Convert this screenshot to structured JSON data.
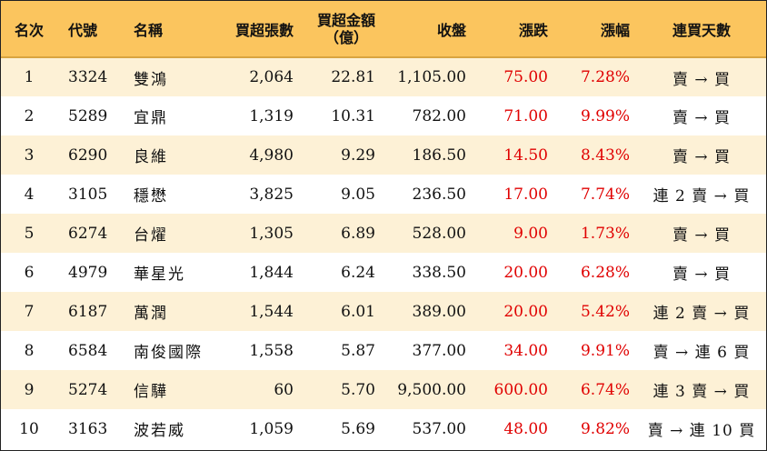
{
  "headers": {
    "rank": "名次",
    "code": "代號",
    "name": "名稱",
    "net_buy_lots": "買超張數",
    "net_buy_amount_line1": "買超金額",
    "net_buy_amount_line2": "（億）",
    "close": "收盤",
    "change": "漲跌",
    "change_pct": "漲幅",
    "consecutive_days": "連買天數"
  },
  "rows": [
    {
      "rank": "1",
      "code": "3324",
      "name": "雙鴻",
      "lots": "2,064",
      "amount": "22.81",
      "close": "1,105.00",
      "change": "75.00",
      "pct": "7.28%",
      "days": "賣 → 買"
    },
    {
      "rank": "2",
      "code": "5289",
      "name": "宜鼎",
      "lots": "1,319",
      "amount": "10.31",
      "close": "782.00",
      "change": "71.00",
      "pct": "9.99%",
      "days": "賣 → 買"
    },
    {
      "rank": "3",
      "code": "6290",
      "name": "良維",
      "lots": "4,980",
      "amount": "9.29",
      "close": "186.50",
      "change": "14.50",
      "pct": "8.43%",
      "days": "賣 → 買"
    },
    {
      "rank": "4",
      "code": "3105",
      "name": "穩懋",
      "lots": "3,825",
      "amount": "9.05",
      "close": "236.50",
      "change": "17.00",
      "pct": "7.74%",
      "days": "連 2 賣 → 買"
    },
    {
      "rank": "5",
      "code": "6274",
      "name": "台燿",
      "lots": "1,305",
      "amount": "6.89",
      "close": "528.00",
      "change": "9.00",
      "pct": "1.73%",
      "days": "賣 → 買"
    },
    {
      "rank": "6",
      "code": "4979",
      "name": "華星光",
      "lots": "1,844",
      "amount": "6.24",
      "close": "338.50",
      "change": "20.00",
      "pct": "6.28%",
      "days": "賣 → 買"
    },
    {
      "rank": "7",
      "code": "6187",
      "name": "萬潤",
      "lots": "1,544",
      "amount": "6.01",
      "close": "389.00",
      "change": "20.00",
      "pct": "5.42%",
      "days": "連 2 賣 → 買"
    },
    {
      "rank": "8",
      "code": "6584",
      "name": "南俊國際",
      "lots": "1,558",
      "amount": "5.87",
      "close": "377.00",
      "change": "34.00",
      "pct": "9.91%",
      "days": "賣 → 連 6 買"
    },
    {
      "rank": "9",
      "code": "5274",
      "name": "信驊",
      "lots": "60",
      "amount": "5.70",
      "close": "9,500.00",
      "change": "600.00",
      "pct": "6.74%",
      "days": "連 3 賣 → 買"
    },
    {
      "rank": "10",
      "code": "3163",
      "name": "波若威",
      "lots": "1,059",
      "amount": "5.69",
      "close": "537.00",
      "change": "48.00",
      "pct": "9.82%",
      "days": "賣 → 連 10 買"
    }
  ],
  "colors": {
    "header_bg": "#fbc55e",
    "odd_row_bg": "#fdf1d6",
    "even_row_bg": "#ffffff",
    "positive_change": "#e00000"
  }
}
